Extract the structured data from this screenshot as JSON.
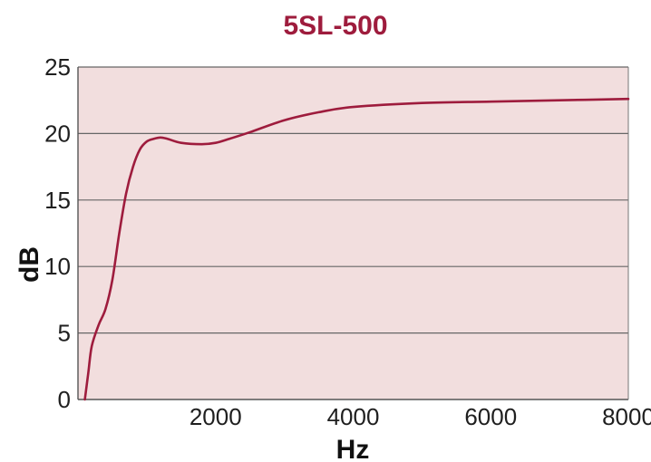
{
  "chart_data": {
    "type": "line",
    "title": "5SL-500",
    "xlabel": "Hz",
    "ylabel": "dB",
    "xlim": [
      0,
      8000
    ],
    "ylim": [
      0,
      25
    ],
    "xticks": [
      2000,
      4000,
      6000,
      8000
    ],
    "yticks": [
      0,
      5,
      10,
      15,
      20,
      25
    ],
    "grid": "horizontal",
    "legend": "none",
    "colors": {
      "line": "#9e1c3d",
      "plot_bg": "#f2dede",
      "title": "#9e1c3d",
      "grid": "#666666"
    },
    "series": [
      {
        "x": [
          100,
          150,
          200,
          300,
          400,
          500,
          600,
          700,
          800,
          900,
          1000,
          1100,
          1200,
          1300,
          1500,
          1800,
          2000,
          2200,
          2500,
          3000,
          3500,
          4000,
          5000,
          6000,
          7000,
          8000
        ],
        "values": [
          0,
          2,
          4,
          5.6,
          6.8,
          9,
          12.5,
          15.5,
          17.5,
          18.8,
          19.4,
          19.6,
          19.7,
          19.6,
          19.3,
          19.2,
          19.3,
          19.6,
          20.1,
          21.0,
          21.6,
          22.0,
          22.3,
          22.4,
          22.5,
          22.6
        ]
      }
    ]
  }
}
